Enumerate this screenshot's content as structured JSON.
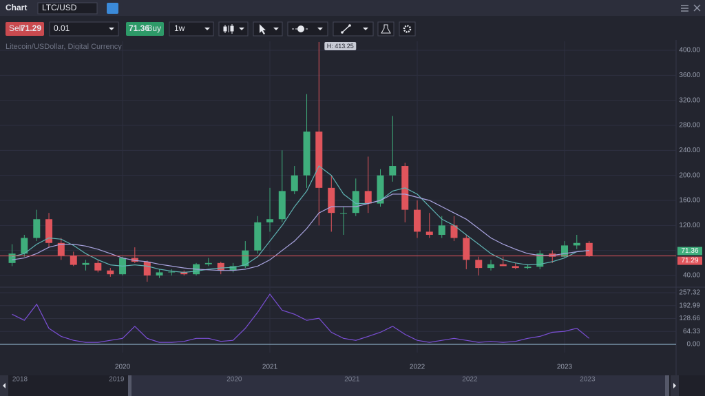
{
  "header": {
    "title": "Chart",
    "symbol": "LTC/USD"
  },
  "toolbar": {
    "sell": "Sell",
    "buy": "Buy",
    "quantity": "0.01",
    "interval": "1w"
  },
  "chart_data": {
    "type": "candlestick",
    "subtitle": "Litecoin/USDollar, Digital Currency",
    "annotation": "H: 413.25",
    "bid": 71.29,
    "ask": 71.36,
    "up_color": "#3fae7c",
    "down_color": "#e0555c",
    "grid": true,
    "x": [
      2019.25,
      2019.333,
      2019.417,
      2019.5,
      2019.583,
      2019.667,
      2019.75,
      2019.833,
      2019.917,
      2020.0,
      2020.083,
      2020.167,
      2020.25,
      2020.333,
      2020.417,
      2020.5,
      2020.583,
      2020.667,
      2020.75,
      2020.833,
      2020.917,
      2021.0,
      2021.083,
      2021.167,
      2021.25,
      2021.333,
      2021.417,
      2021.5,
      2021.583,
      2021.667,
      2021.75,
      2021.833,
      2021.917,
      2022.0,
      2022.083,
      2022.167,
      2022.25,
      2022.333,
      2022.417,
      2022.5,
      2022.583,
      2022.667,
      2022.75,
      2022.833,
      2022.917,
      2023.0,
      2023.083,
      2023.167
    ],
    "open": [
      60,
      75,
      100,
      130,
      92,
      72,
      57,
      60,
      48,
      42,
      68,
      62,
      40,
      45,
      46,
      42,
      58,
      60,
      48,
      55,
      80,
      125,
      130,
      175,
      200,
      270,
      180,
      140,
      140,
      175,
      155,
      200,
      215,
      145,
      110,
      105,
      120,
      100,
      65,
      52,
      58,
      55,
      52,
      54,
      75,
      70,
      88,
      92
    ],
    "high": [
      90,
      105,
      145,
      140,
      100,
      78,
      65,
      65,
      52,
      70,
      85,
      64,
      50,
      50,
      48,
      60,
      68,
      62,
      60,
      95,
      135,
      180,
      240,
      215,
      330,
      413.25,
      200,
      150,
      195,
      230,
      210,
      295,
      220,
      160,
      140,
      135,
      135,
      105,
      70,
      65,
      70,
      60,
      58,
      80,
      80,
      95,
      105,
      95
    ],
    "low": [
      55,
      70,
      95,
      85,
      65,
      55,
      48,
      45,
      38,
      40,
      60,
      30,
      36,
      40,
      40,
      40,
      55,
      42,
      45,
      52,
      75,
      110,
      125,
      170,
      180,
      120,
      110,
      105,
      135,
      140,
      150,
      190,
      125,
      100,
      100,
      100,
      95,
      50,
      40,
      48,
      55,
      50,
      50,
      50,
      60,
      68,
      82,
      70
    ],
    "close": [
      75,
      100,
      130,
      92,
      72,
      57,
      60,
      48,
      42,
      68,
      62,
      40,
      45,
      46,
      42,
      58,
      60,
      48,
      55,
      80,
      125,
      130,
      175,
      200,
      270,
      180,
      140,
      140,
      175,
      155,
      200,
      215,
      145,
      110,
      105,
      120,
      100,
      65,
      52,
      58,
      55,
      52,
      54,
      75,
      70,
      88,
      92,
      71.29
    ],
    "overlays": [
      {
        "color": "#5fb3b3",
        "values": [
          70,
          75,
          90,
          100,
          98,
          88,
          75,
          65,
          57,
          55,
          57,
          55,
          50,
          47,
          45,
          47,
          50,
          52,
          53,
          57,
          70,
          95,
          120,
          150,
          175,
          215,
          200,
          170,
          155,
          155,
          160,
          175,
          180,
          170,
          150,
          130,
          120,
          105,
          90,
          75,
          65,
          60,
          57,
          58,
          62,
          68,
          78,
          80
        ]
      },
      {
        "color": "#a9a4e0",
        "values": [
          65,
          68,
          75,
          85,
          90,
          90,
          87,
          82,
          75,
          68,
          64,
          62,
          58,
          55,
          52,
          50,
          49,
          48,
          48,
          50,
          55,
          65,
          80,
          95,
          115,
          140,
          150,
          150,
          150,
          155,
          160,
          170,
          170,
          165,
          160,
          150,
          140,
          130,
          115,
          100,
          90,
          82,
          75,
          72,
          72,
          75,
          78,
          80
        ]
      }
    ],
    "xlim": [
      2019.168,
      2023.757
    ],
    "xticks": [
      2020,
      2021,
      2022,
      2023
    ],
    "ylim": [
      23.5,
      414.3
    ],
    "yticks": [
      {
        "value": 40,
        "label": "40.00"
      },
      {
        "value": 80,
        "label": "80.00"
      },
      {
        "value": 120,
        "label": "120.00"
      },
      {
        "value": 160,
        "label": "160.00"
      },
      {
        "value": 200,
        "label": "200.00"
      },
      {
        "value": 240,
        "label": "240.00"
      },
      {
        "value": 280,
        "label": "280.00"
      },
      {
        "value": 320,
        "label": "320.00"
      },
      {
        "value": 360,
        "label": "360.00"
      },
      {
        "value": 400,
        "label": "400.00"
      }
    ],
    "indicator": {
      "color": "#7b4fd6",
      "baseline_color": "#9fc7e0",
      "values": [
        150,
        120,
        200,
        80,
        40,
        20,
        10,
        10,
        20,
        30,
        90,
        30,
        10,
        10,
        15,
        30,
        30,
        15,
        20,
        80,
        160,
        250,
        170,
        150,
        120,
        130,
        60,
        30,
        20,
        40,
        60,
        90,
        50,
        20,
        10,
        20,
        30,
        20,
        10,
        15,
        10,
        15,
        30,
        40,
        60,
        65,
        80,
        30
      ],
      "ylim": [
        -41,
        274.5
      ],
      "yticks": [
        {
          "value": 0,
          "label": "0.00"
        },
        64.33,
        128.66,
        192.99,
        257.32
      ]
    },
    "navigator": {
      "xlim": [
        2018.08,
        2023.67
      ],
      "xticks": [
        2018,
        2019,
        2020,
        2021,
        2022,
        2023
      ]
    }
  }
}
